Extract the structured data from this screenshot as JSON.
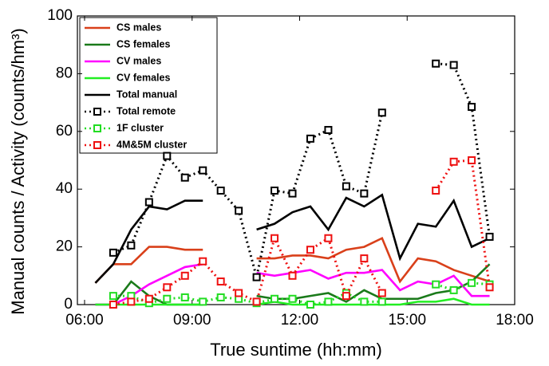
{
  "chart_data": {
    "type": "line",
    "x_label": "True suntime (hh:mm)",
    "y_label": "Manual counts / Activity (counts/hm³)",
    "xlim": [
      5.8,
      18
    ],
    "xticks": [
      {
        "value": 6,
        "label": "06:00"
      },
      {
        "value": 9,
        "label": "09:00"
      },
      {
        "value": 12,
        "label": "12:00"
      },
      {
        "value": 15,
        "label": "15:00"
      },
      {
        "value": 18,
        "label": "18:00"
      }
    ],
    "ylim": [
      0,
      100
    ],
    "yticks": [
      0,
      20,
      40,
      60,
      80,
      100
    ],
    "legend": "upper left",
    "series": [
      {
        "name": "CS males",
        "color": "#d9401a",
        "style": "solid",
        "marker": "none",
        "x": [
          6.3,
          6.8,
          7.3,
          7.8,
          8.3,
          8.8,
          9.3,
          9.8,
          10.3,
          10.8,
          11.3,
          11.8,
          12.3,
          12.8,
          13.3,
          13.8,
          14.3,
          14.8,
          15.3,
          15.8,
          16.3,
          16.8,
          17.3
        ],
        "values": [
          7.5,
          14,
          14,
          20,
          20,
          19,
          19,
          null,
          null,
          16,
          16,
          17,
          17,
          16,
          19,
          20,
          23,
          8,
          16,
          15,
          12,
          10,
          8
        ]
      },
      {
        "name": "CS females",
        "color": "#1a7a1a",
        "style": "solid",
        "marker": "none",
        "x": [
          6.3,
          6.8,
          7.3,
          7.8,
          8.3,
          8.8,
          9.3,
          9.8,
          10.3,
          10.8,
          11.3,
          11.8,
          12.3,
          12.8,
          13.3,
          13.8,
          14.3,
          14.8,
          15.3,
          15.8,
          16.3,
          16.8,
          17.3
        ],
        "values": [
          0,
          0,
          8,
          3,
          0,
          0,
          0,
          null,
          null,
          3,
          2,
          2,
          3,
          4,
          1,
          5,
          2,
          2,
          2,
          4,
          5,
          8,
          14
        ]
      },
      {
        "name": "CV males",
        "color": "#ff00ff",
        "style": "solid",
        "marker": "none",
        "x": [
          6.3,
          6.8,
          7.3,
          7.8,
          8.3,
          8.8,
          9.3,
          9.8,
          10.3,
          10.8,
          11.3,
          11.8,
          12.3,
          12.8,
          13.3,
          13.8,
          14.3,
          14.8,
          15.3,
          15.8,
          16.3,
          16.8,
          17.3
        ],
        "values": [
          0,
          0,
          3,
          7,
          10,
          13,
          14,
          null,
          null,
          11,
          10,
          11,
          12,
          9,
          11,
          11,
          12,
          5,
          8,
          7,
          10,
          3,
          3
        ]
      },
      {
        "name": "CV females",
        "color": "#22ee22",
        "style": "solid",
        "marker": "none",
        "x": [
          6.3,
          6.8,
          7.3,
          7.8,
          8.3,
          8.8,
          9.3,
          9.8,
          10.3,
          10.8,
          11.3,
          11.8,
          12.3,
          12.8,
          13.3,
          13.8,
          14.3,
          14.8,
          15.3,
          15.8,
          16.3,
          16.8,
          17.3
        ],
        "values": [
          0,
          0,
          0,
          0,
          0,
          0,
          0,
          null,
          null,
          0,
          1,
          0,
          0,
          0,
          0,
          0,
          0,
          0,
          1,
          1,
          2,
          0,
          0
        ]
      },
      {
        "name": "Total manual",
        "color": "#000000",
        "style": "solid",
        "marker": "none",
        "x": [
          6.3,
          6.8,
          7.3,
          7.8,
          8.3,
          8.8,
          9.3,
          9.8,
          10.3,
          10.8,
          11.3,
          11.8,
          12.3,
          12.8,
          13.3,
          13.8,
          14.3,
          14.8,
          15.3,
          15.8,
          16.3,
          16.8,
          17.3
        ],
        "values": [
          7.5,
          14,
          26,
          34,
          33,
          36,
          36,
          null,
          null,
          26,
          28,
          32,
          34,
          26,
          37,
          34,
          38,
          16,
          28,
          27,
          36,
          20,
          23
        ]
      },
      {
        "name": "Total remote",
        "color": "#000000",
        "style": "dotted",
        "marker": "square",
        "x": [
          6.8,
          7.3,
          7.8,
          8.3,
          8.8,
          9.3,
          9.8,
          10.3,
          10.8,
          11.3,
          11.8,
          12.3,
          12.8,
          13.3,
          13.8,
          14.3,
          14.8,
          15.3,
          15.8,
          16.3,
          16.8,
          17.3
        ],
        "values": [
          18,
          20.5,
          35.5,
          51.5,
          44,
          46.5,
          39.5,
          32.5,
          9.5,
          39.5,
          38.5,
          57.5,
          60.5,
          41,
          38.5,
          66.5,
          null,
          null,
          83.5,
          83,
          68.5,
          23.5
        ]
      },
      {
        "name": "1F cluster",
        "color": "#22dd22",
        "style": "dotted",
        "marker": "square",
        "x": [
          6.8,
          7.3,
          7.8,
          8.3,
          8.8,
          9.3,
          9.8,
          10.3,
          10.8,
          11.3,
          11.8,
          12.3,
          12.8,
          13.3,
          13.8,
          14.3,
          14.8,
          15.3,
          15.8,
          16.3,
          16.8,
          17.3
        ],
        "values": [
          3,
          3,
          0.5,
          2,
          2.5,
          1,
          2.5,
          2,
          0.5,
          2,
          2,
          0,
          1,
          4,
          1,
          1,
          null,
          null,
          7,
          5,
          7.5,
          7
        ]
      },
      {
        "name": "4M&5M cluster",
        "color": "#ee1111",
        "style": "dotted",
        "marker": "square",
        "x": [
          6.8,
          7.3,
          7.8,
          8.3,
          8.8,
          9.3,
          9.8,
          10.3,
          10.8,
          11.3,
          11.8,
          12.3,
          12.8,
          13.3,
          13.8,
          14.3,
          14.8,
          15.3,
          15.8,
          16.3,
          16.8,
          17.3
        ],
        "values": [
          0,
          1,
          2,
          6,
          10,
          15,
          8,
          4,
          1,
          23,
          10,
          19,
          23,
          3,
          16,
          4,
          null,
          null,
          39.5,
          49.5,
          50,
          6
        ]
      }
    ]
  }
}
